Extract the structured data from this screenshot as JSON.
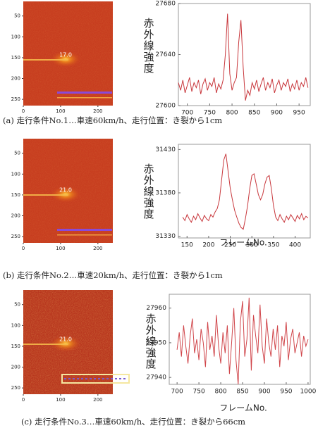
{
  "chart_data": [
    {
      "type": "image",
      "annotation": "17.0",
      "xlim": [
        0,
        240
      ],
      "ylim": [
        15,
        265
      ],
      "xticks": [
        0,
        100,
        200
      ],
      "yticks": [
        50,
        100,
        150,
        200,
        250
      ]
    },
    {
      "type": "line",
      "ylabel": "赤外線強度",
      "caption": "(a) 走行条件No.1…車速60km/h、走行位置：き裂から1cm",
      "xlim": [
        680,
        975
      ],
      "ylim": [
        27600,
        27680
      ],
      "xticks": [
        700,
        750,
        800,
        850,
        900,
        950
      ],
      "yticks": [
        27600,
        27640,
        27680
      ],
      "series": [
        {
          "color": "#c8373c",
          "x": [
            680,
            685,
            690,
            695,
            700,
            705,
            710,
            715,
            720,
            725,
            730,
            735,
            740,
            745,
            750,
            755,
            760,
            765,
            770,
            775,
            780,
            785,
            790,
            795,
            800,
            805,
            810,
            815,
            820,
            825,
            830,
            835,
            840,
            845,
            850,
            855,
            860,
            865,
            870,
            875,
            880,
            885,
            890,
            895,
            900,
            905,
            910,
            915,
            920,
            925,
            930,
            935,
            940,
            945,
            950,
            955,
            960,
            965,
            970
          ],
          "values": [
            27618,
            27612,
            27620,
            27610,
            27616,
            27622,
            27611,
            27618,
            27614,
            27620,
            27609,
            27617,
            27621,
            27612,
            27618,
            27615,
            27622,
            27610,
            27617,
            27613,
            27620,
            27640,
            27672,
            27625,
            27612,
            27618,
            27622,
            27650,
            27667,
            27630,
            27604,
            27612,
            27608,
            27618,
            27613,
            27620,
            27611,
            27617,
            27622,
            27612,
            27618,
            27614,
            27621,
            27610,
            27616,
            27620,
            27612,
            27618,
            27615,
            27621,
            27611,
            27617,
            27613,
            27620,
            27612,
            27618,
            27615,
            27622,
            27614
          ]
        }
      ]
    },
    {
      "type": "image",
      "annotation": "21.0",
      "xlim": [
        0,
        240
      ],
      "ylim": [
        15,
        265
      ],
      "xticks": [
        0,
        100,
        200
      ],
      "yticks": [
        50,
        100,
        150,
        200,
        250
      ]
    },
    {
      "type": "line",
      "ylabel": "赤外線強度",
      "xlabel": "フレームNo.",
      "caption": "(b) 走行条件No.2…車速20km/h、走行位置：き裂から1cm",
      "xlim": [
        130,
        435
      ],
      "ylim": [
        31328,
        31436
      ],
      "xticks": [
        150,
        200,
        250,
        300,
        350,
        400
      ],
      "yticks": [
        31330,
        31380,
        31430
      ],
      "series": [
        {
          "color": "#c8373c",
          "x": [
            140,
            145,
            150,
            155,
            160,
            165,
            170,
            175,
            180,
            185,
            190,
            195,
            200,
            205,
            210,
            215,
            220,
            225,
            230,
            235,
            240,
            245,
            250,
            255,
            260,
            265,
            270,
            275,
            280,
            285,
            290,
            295,
            300,
            305,
            310,
            315,
            320,
            325,
            330,
            335,
            340,
            345,
            350,
            355,
            360,
            365,
            370,
            375,
            380,
            385,
            390,
            395,
            400,
            405,
            410,
            415,
            420,
            425,
            430
          ],
          "values": [
            31352,
            31348,
            31355,
            31350,
            31346,
            31353,
            31349,
            31356,
            31351,
            31347,
            31354,
            31350,
            31348,
            31355,
            31352,
            31358,
            31362,
            31372,
            31395,
            31418,
            31425,
            31405,
            31385,
            31372,
            31360,
            31352,
            31345,
            31340,
            31338,
            31350,
            31365,
            31385,
            31400,
            31402,
            31390,
            31378,
            31372,
            31378,
            31390,
            31398,
            31400,
            31385,
            31365,
            31352,
            31348,
            31355,
            31350,
            31346,
            31353,
            31349,
            31355,
            31351,
            31347,
            31354,
            31350,
            31356,
            31349,
            31353,
            31351
          ]
        }
      ]
    },
    {
      "type": "image",
      "annotation": "21.0",
      "xlim": [
        0,
        240
      ],
      "ylim": [
        15,
        265
      ],
      "xticks": [
        0,
        100,
        200
      ],
      "yticks": [
        50,
        100,
        150,
        200,
        250
      ]
    },
    {
      "type": "line",
      "ylabel": "赤外線強度",
      "xlabel": "フレームNo.",
      "caption": "(c) 走行条件No.3…車速60km/h、走行位置：き裂から66cm",
      "xlim": [
        682,
        1005
      ],
      "ylim": [
        27938,
        27964
      ],
      "xticks": [
        700,
        750,
        800,
        850,
        900,
        950,
        1000
      ],
      "yticks": [
        27940,
        27950,
        27960
      ],
      "series": [
        {
          "color": "#d0454a",
          "x": [
            700,
            705,
            710,
            715,
            720,
            725,
            730,
            735,
            740,
            745,
            750,
            755,
            760,
            765,
            770,
            775,
            780,
            785,
            790,
            795,
            800,
            805,
            810,
            815,
            820,
            825,
            830,
            835,
            840,
            845,
            850,
            855,
            860,
            865,
            870,
            875,
            880,
            885,
            890,
            895,
            900,
            905,
            910,
            915,
            920,
            925,
            930,
            935,
            940,
            945,
            950,
            955,
            960,
            965,
            970,
            975,
            980,
            985,
            990,
            995,
            1000
          ],
          "values": [
            27948,
            27953,
            27946,
            27955,
            27949,
            27944,
            27952,
            27957,
            27947,
            27951,
            27945,
            27954,
            27950,
            27943,
            27956,
            27948,
            27952,
            27946,
            27958,
            27949,
            27944,
            27953,
            27947,
            27955,
            27941,
            27950,
            27960,
            27945,
            27938,
            27956,
            27962,
            27946,
            27951,
            27963,
            27942,
            27958,
            27952,
            27947,
            27961,
            27949,
            27944,
            27957,
            27950,
            27946,
            27954,
            27948,
            27955,
            27943,
            27952,
            27949,
            27956,
            27945,
            27951,
            27954,
            27947,
            27950,
            27953,
            27946,
            27952,
            27949,
            27951
          ]
        }
      ]
    }
  ]
}
